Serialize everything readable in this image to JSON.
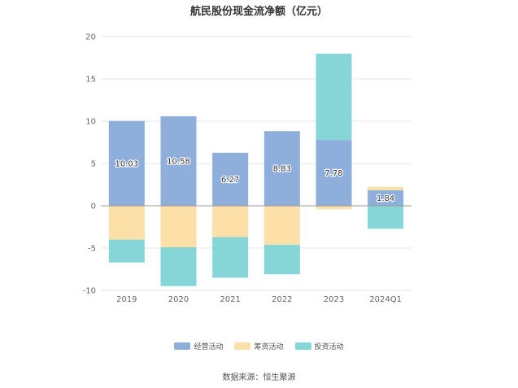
{
  "chart_data": {
    "type": "bar",
    "stacked": true,
    "title": "航民股份现金流净额（亿元）",
    "categories": [
      "2019",
      "2020",
      "2021",
      "2022",
      "2023",
      "2024Q1"
    ],
    "series": [
      {
        "name": "经营活动",
        "color": "#8eaedb",
        "values": [
          10.03,
          10.58,
          6.27,
          8.83,
          7.78,
          1.84
        ],
        "show_labels": true
      },
      {
        "name": "筹资活动",
        "color": "#fddfa8",
        "values": [
          -4.0,
          -4.9,
          -3.7,
          -4.6,
          -0.4,
          0.4
        ],
        "show_labels": false
      },
      {
        "name": "投资活动",
        "color": "#86d6d8",
        "values": [
          -2.7,
          -4.6,
          -4.8,
          -3.5,
          10.2,
          -2.7
        ],
        "show_labels": false
      }
    ],
    "y_ticks": [
      20,
      15,
      10,
      5,
      0,
      -5,
      -10
    ],
    "ylim": [
      -10,
      20
    ],
    "grid": true,
    "legend_position": "bottom"
  },
  "source_text": "数据来源：恒生聚源"
}
